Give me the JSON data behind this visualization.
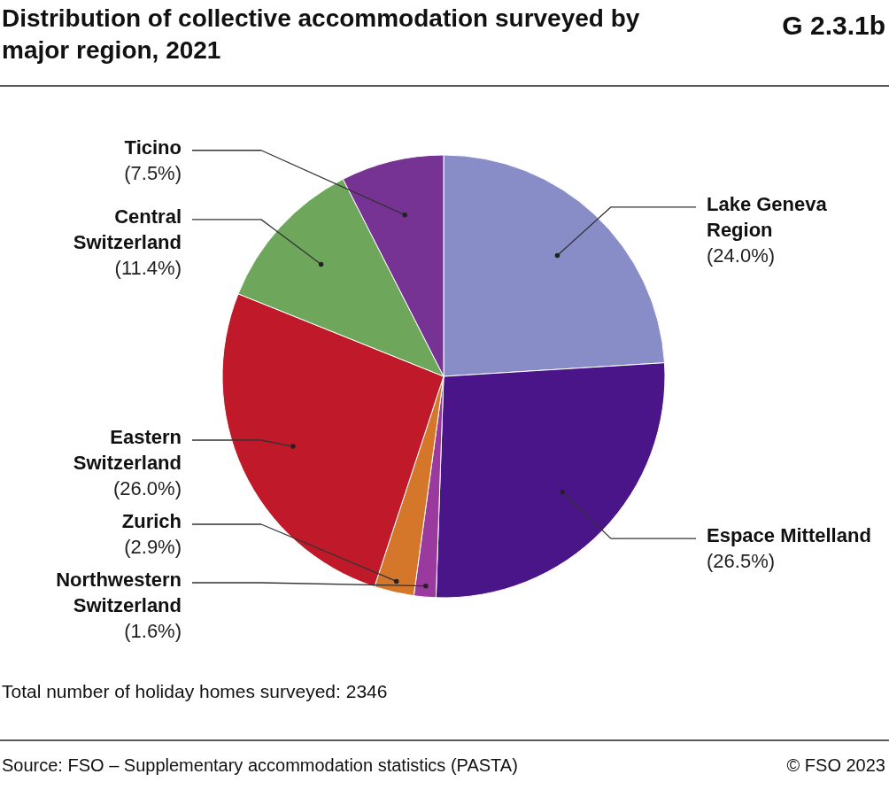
{
  "chart_data": {
    "type": "pie",
    "title": "Distribution of collective accommodation surveyed by major region, 2021",
    "categories": [
      "Lake Geneva Region",
      "Espace Mittelland",
      "Northwestern Switzerland",
      "Zurich",
      "Eastern Switzerland",
      "Central Switzerland",
      "Ticino"
    ],
    "values": [
      24.0,
      26.5,
      1.6,
      2.9,
      26.0,
      11.4,
      7.5
    ],
    "value_labels": [
      "(24.0%)",
      "(26.5%)",
      "(1.6%)",
      "(2.9%)",
      "(26.0%)",
      "(11.4%)",
      "(7.5%)"
    ],
    "colors": [
      "#888dc7",
      "#4a1589",
      "#9a3a9e",
      "#d4772a",
      "#c01a2a",
      "#6ea75c",
      "#773394"
    ],
    "annotations": [
      "G 2.3.1b",
      "Total number of holiday homes surveyed: 2346",
      "Source: FSO – Supplementary accommodation statistics (PASTA)",
      "© FSO 2023"
    ]
  }
}
